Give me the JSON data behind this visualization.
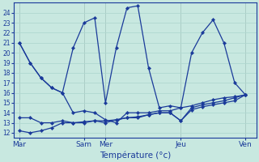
{
  "background_color": "#c8e8e0",
  "grid_color": "#b0d8d0",
  "line_color": "#1a3a9a",
  "ylim": [
    11.5,
    25
  ],
  "yticks": [
    12,
    13,
    14,
    15,
    16,
    17,
    18,
    19,
    20,
    21,
    22,
    23,
    24
  ],
  "xlabel": "Température (°c)",
  "day_positions": [
    0,
    6,
    8,
    15,
    21
  ],
  "day_labels": [
    "Mar",
    "Sam",
    "Mer",
    "Jeu",
    "Ven"
  ],
  "xlim": [
    -0.5,
    22
  ],
  "series": [
    {
      "x": [
        0,
        1,
        2,
        3,
        4,
        5,
        6,
        7,
        8,
        9,
        10,
        11,
        12,
        13,
        14,
        15,
        16,
        17,
        18,
        19,
        20,
        21
      ],
      "y": [
        21,
        19,
        17.5,
        16.5,
        16,
        20.5,
        23,
        23.5,
        15,
        20.5,
        24.5,
        24.7,
        18.5,
        14.5,
        14.7,
        14.5,
        20,
        22,
        23.3,
        21,
        17,
        15.8
      ]
    },
    {
      "x": [
        0,
        1,
        2,
        3,
        4,
        5,
        6,
        7,
        8,
        9,
        10,
        11,
        12,
        13,
        14,
        15,
        16,
        17,
        18,
        19,
        20,
        21
      ],
      "y": [
        21,
        19,
        17.5,
        16.5,
        16,
        14,
        14.2,
        14,
        13.3,
        13,
        14,
        14,
        14,
        14.2,
        14.2,
        14.5,
        14.7,
        15,
        15.3,
        15.5,
        15.6,
        15.8
      ]
    },
    {
      "x": [
        0,
        1,
        2,
        3,
        4,
        5,
        6,
        7,
        8,
        9,
        10,
        11,
        12,
        13,
        14,
        15,
        16,
        17,
        18,
        19,
        20,
        21
      ],
      "y": [
        13.5,
        13.5,
        13,
        13,
        13.2,
        13,
        13,
        13.2,
        13,
        13.3,
        13.5,
        13.5,
        13.8,
        14,
        14,
        13.2,
        14.5,
        14.8,
        15,
        15.2,
        15.5,
        15.8
      ]
    },
    {
      "x": [
        0,
        1,
        2,
        3,
        4,
        5,
        6,
        7,
        8,
        9,
        10,
        11,
        12,
        13,
        14,
        15,
        16,
        17,
        18,
        19,
        20,
        21
      ],
      "y": [
        12.2,
        12,
        12.2,
        12.5,
        13,
        13,
        13.1,
        13.2,
        13.2,
        13.3,
        13.5,
        13.6,
        13.8,
        14,
        14,
        13.2,
        14.3,
        14.6,
        14.8,
        15,
        15.2,
        15.8
      ]
    }
  ],
  "vline_positions": [
    0,
    6,
    8,
    15,
    21
  ],
  "vline_color": "#888888",
  "tick_color": "#1a3a9a",
  "label_color": "#1a3a9a"
}
